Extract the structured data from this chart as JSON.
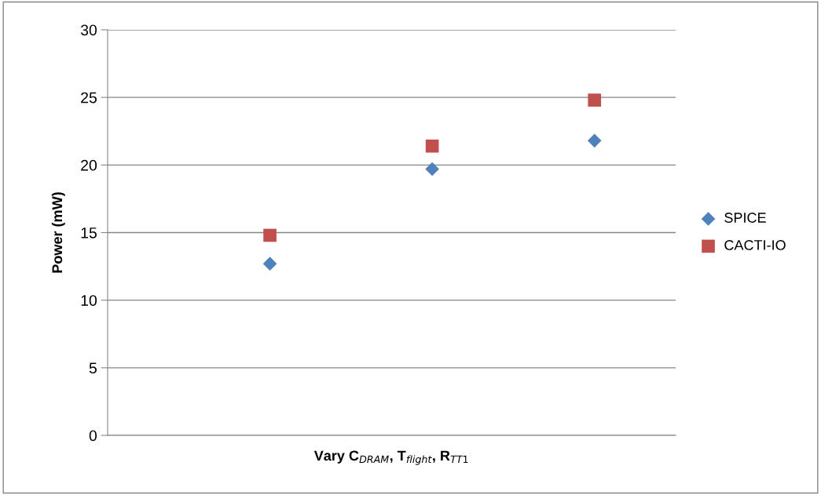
{
  "chart_data": {
    "type": "scatter",
    "xlabel": "Vary C$_{DRAM}$, T$_{flight}$, R$_{TT1}$",
    "ylabel": "Power (mW)",
    "categories": [
      null,
      null,
      null
    ],
    "ylim": [
      0,
      30
    ],
    "yticks": [
      0,
      5,
      10,
      15,
      20,
      25,
      30
    ],
    "tick_labels": "y",
    "grid": "y",
    "legend": "right",
    "series": [
      {
        "name": "SPICE",
        "color": "#4f81bd",
        "marker": "diamond",
        "values": [
          12.7,
          19.7,
          21.8
        ]
      },
      {
        "name": "CACTI-IO",
        "color": "#c0504d",
        "marker": "square",
        "values": [
          14.8,
          21.4,
          24.8
        ]
      }
    ]
  }
}
